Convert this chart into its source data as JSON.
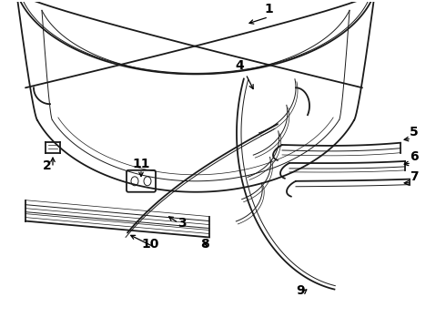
{
  "background_color": "#ffffff",
  "line_color": "#1a1a1a",
  "label_color": "#000000",
  "figsize": [
    4.9,
    3.6
  ],
  "dpi": 100,
  "lw_main": 1.3,
  "lw_thick": 1.8,
  "lw_thin": 0.7,
  "lw_vt": 0.5,
  "label_fs": 9
}
